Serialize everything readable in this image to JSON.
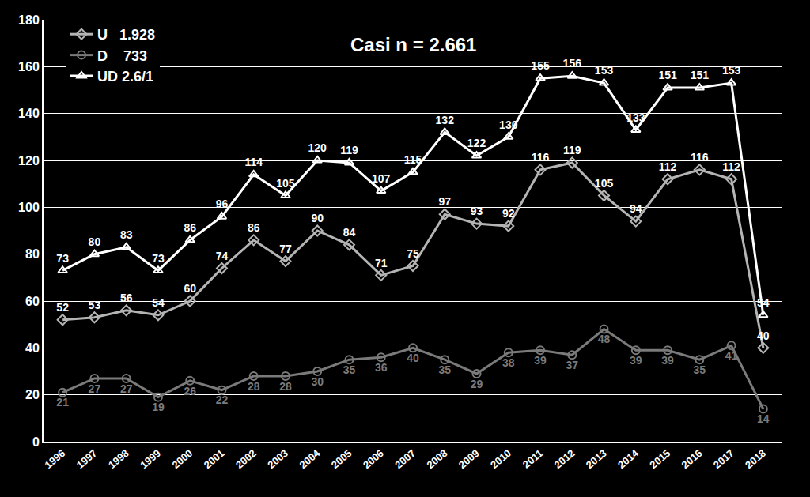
{
  "chart_data": {
    "type": "line",
    "annotation": "Casi n = 2.661",
    "categories": [
      "1996",
      "1997",
      "1998",
      "1999",
      "2000",
      "2001",
      "2002",
      "2003",
      "2004",
      "2005",
      "2006",
      "2007",
      "2008",
      "2009",
      "2010",
      "2011",
      "2012",
      "2013",
      "2014",
      "2015",
      "2016",
      "2017",
      "2018"
    ],
    "series": [
      {
        "name": "U   1.928",
        "color": "#b4b4b4",
        "marker": "diamond",
        "values": [
          52,
          53,
          56,
          54,
          60,
          74,
          86,
          77,
          90,
          84,
          71,
          75,
          97,
          93,
          92,
          116,
          119,
          105,
          94,
          112,
          116,
          112,
          40
        ]
      },
      {
        "name": "D    733",
        "color": "#7a7a7a",
        "marker": "circle",
        "values": [
          21,
          27,
          27,
          19,
          26,
          22,
          28,
          28,
          30,
          35,
          36,
          40,
          35,
          29,
          38,
          39,
          37,
          48,
          39,
          39,
          35,
          41,
          14
        ]
      },
      {
        "name": "UD 2.6/1",
        "color": "#ffffff",
        "marker": "triangle-up",
        "values": [
          73,
          80,
          83,
          73,
          86,
          96,
          114,
          105,
          120,
          119,
          107,
          115,
          132,
          122,
          130,
          155,
          156,
          153,
          133,
          151,
          151,
          153,
          54
        ]
      }
    ],
    "ylim": [
      0,
      180
    ],
    "yticks": [
      0,
      20,
      40,
      60,
      80,
      100,
      120,
      140,
      160,
      180
    ],
    "grid": true,
    "legend": "upper left",
    "data_labels": true
  }
}
